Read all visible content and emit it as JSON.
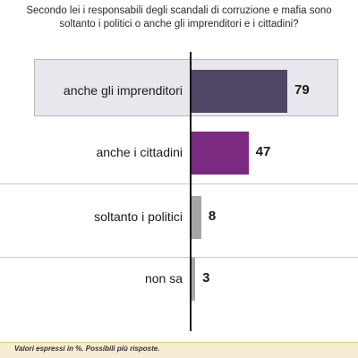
{
  "chart_data": {
    "type": "bar",
    "orientation": "horizontal",
    "title": "Secondo lei i responsabili degli scandali di corruzione e mafia sono soltanto i politici o anche gli imprenditori e i cittadini?",
    "categories": [
      "anche gli imprenditori",
      "anche i cittadini",
      "soltanto i politici",
      "non sa"
    ],
    "values": [
      79,
      47,
      8,
      3
    ],
    "value_labels": [
      "79",
      "47",
      "8",
      "3"
    ],
    "colors": [
      "#4f4763",
      "#7a2a80",
      "#a6a6a6",
      "#a6a6a6"
    ],
    "highlight_category": "anche gli imprenditori",
    "xlim": [
      0,
      100
    ],
    "grid": false,
    "legend": "none"
  },
  "footer": {
    "note": "Valori espressi in %. Possibili più risposte."
  }
}
